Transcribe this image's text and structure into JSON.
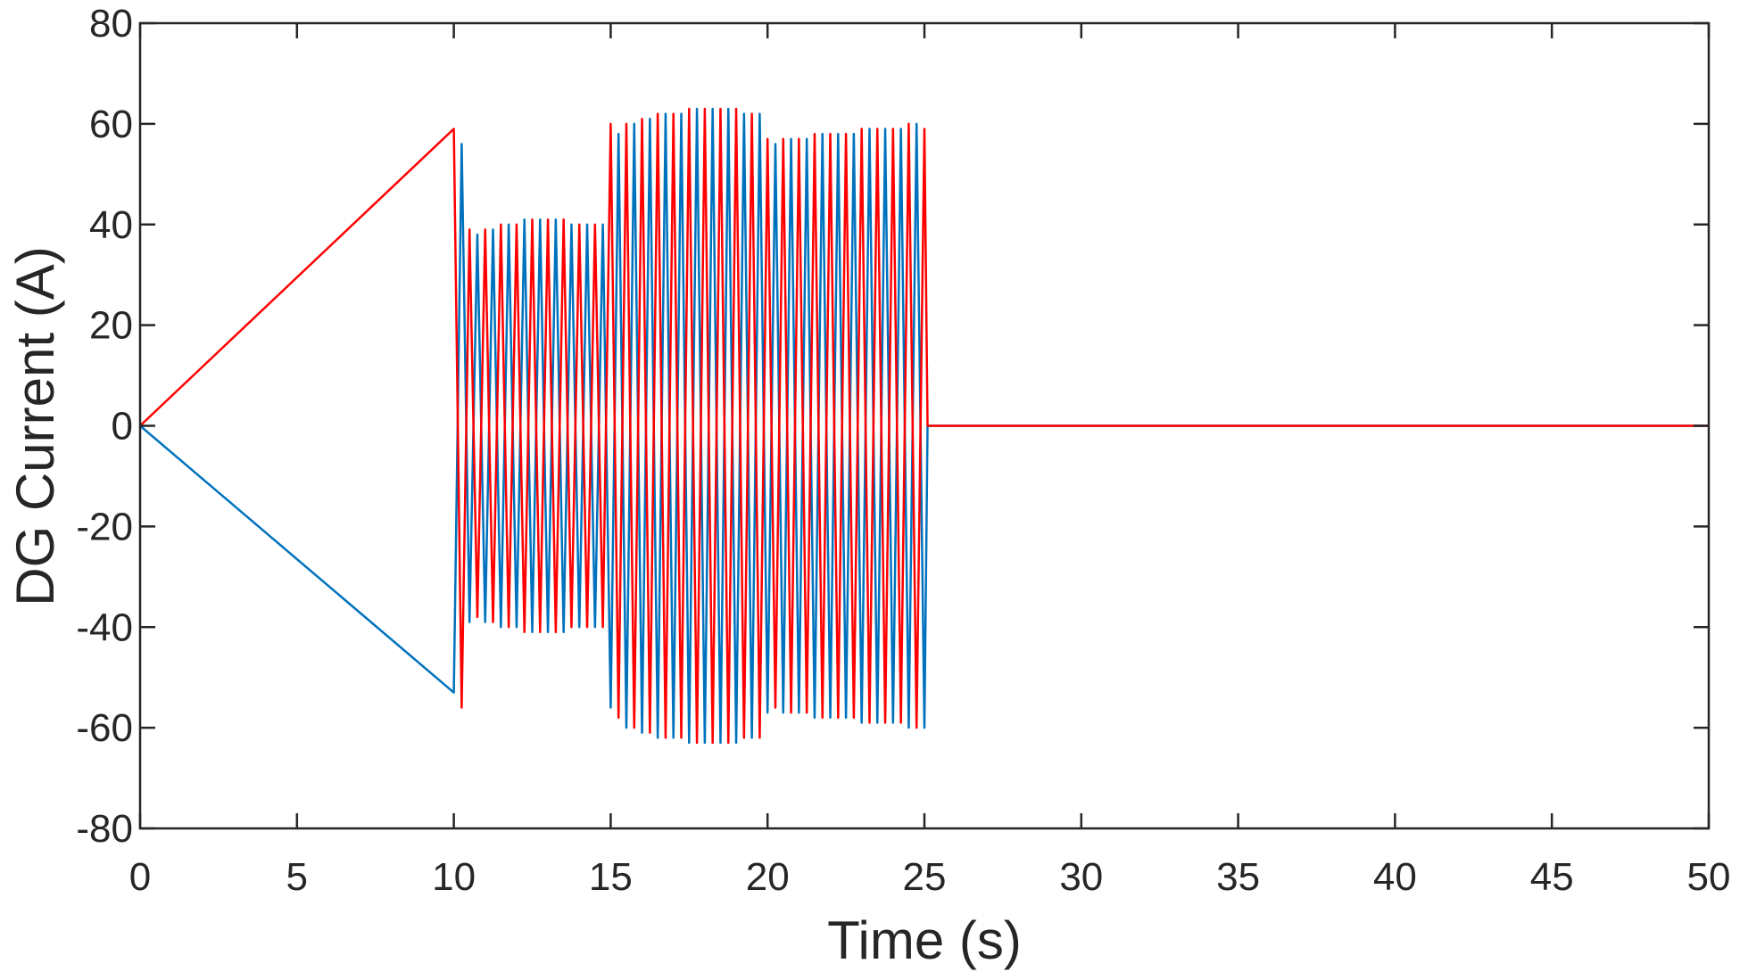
{
  "chart_data": {
    "type": "line",
    "xlabel": "Time (s)",
    "ylabel": "DG Current (A)",
    "x": [
      0,
      10,
      10.25,
      10.5,
      10.75,
      11,
      11.25,
      11.5,
      11.75,
      12,
      12.25,
      12.5,
      12.75,
      13,
      13.25,
      13.5,
      13.75,
      14,
      14.25,
      14.5,
      14.75,
      15,
      15.25,
      15.5,
      15.75,
      16,
      16.25,
      16.5,
      16.75,
      17,
      17.25,
      17.5,
      17.75,
      18,
      18.25,
      18.5,
      18.75,
      19,
      19.25,
      19.5,
      19.75,
      20,
      20.25,
      20.5,
      20.75,
      21,
      21.25,
      21.5,
      21.75,
      22,
      22.25,
      22.5,
      22.75,
      23,
      23.25,
      23.5,
      23.75,
      24,
      24.25,
      24.5,
      24.75,
      25,
      25.1,
      50
    ],
    "series": [
      {
        "color": "#0072bd",
        "values": [
          0,
          -53,
          56,
          -39,
          38,
          -39,
          39,
          -40,
          40,
          -40,
          41,
          -41,
          41,
          -41,
          41,
          -41,
          40,
          -40,
          40,
          -40,
          40,
          -56,
          58,
          -60,
          60,
          -61,
          61,
          -62,
          62,
          -62,
          62,
          -63,
          63,
          -63,
          63,
          -63,
          63,
          -63,
          62,
          -62,
          62,
          -57,
          56,
          -57,
          57,
          -57,
          57,
          -58,
          58,
          -58,
          58,
          -58,
          58,
          -59,
          59,
          -59,
          59,
          -59,
          59,
          -60,
          60,
          -60,
          0,
          0
        ]
      },
      {
        "color": "#ff0000",
        "values": [
          0,
          59,
          -56,
          39,
          -38,
          39,
          -39,
          40,
          -40,
          40,
          -41,
          41,
          -41,
          41,
          -41,
          41,
          -40,
          40,
          -40,
          40,
          -40,
          60,
          -58,
          60,
          -60,
          61,
          -61,
          62,
          -62,
          62,
          -62,
          63,
          -63,
          63,
          -63,
          63,
          -63,
          63,
          -62,
          62,
          -62,
          57,
          -56,
          57,
          -57,
          57,
          -57,
          58,
          -58,
          58,
          -58,
          58,
          -58,
          59,
          -59,
          59,
          -59,
          59,
          -59,
          60,
          -60,
          59,
          0,
          0
        ]
      }
    ],
    "xlim": [
      0,
      50
    ],
    "xticks": [
      0,
      5,
      10,
      15,
      20,
      25,
      30,
      35,
      40,
      45,
      50
    ],
    "ylim": [
      -80,
      80
    ],
    "yticks": [
      -80,
      -60,
      -40,
      -20,
      0,
      20,
      40,
      60,
      80
    ],
    "grid": false
  }
}
